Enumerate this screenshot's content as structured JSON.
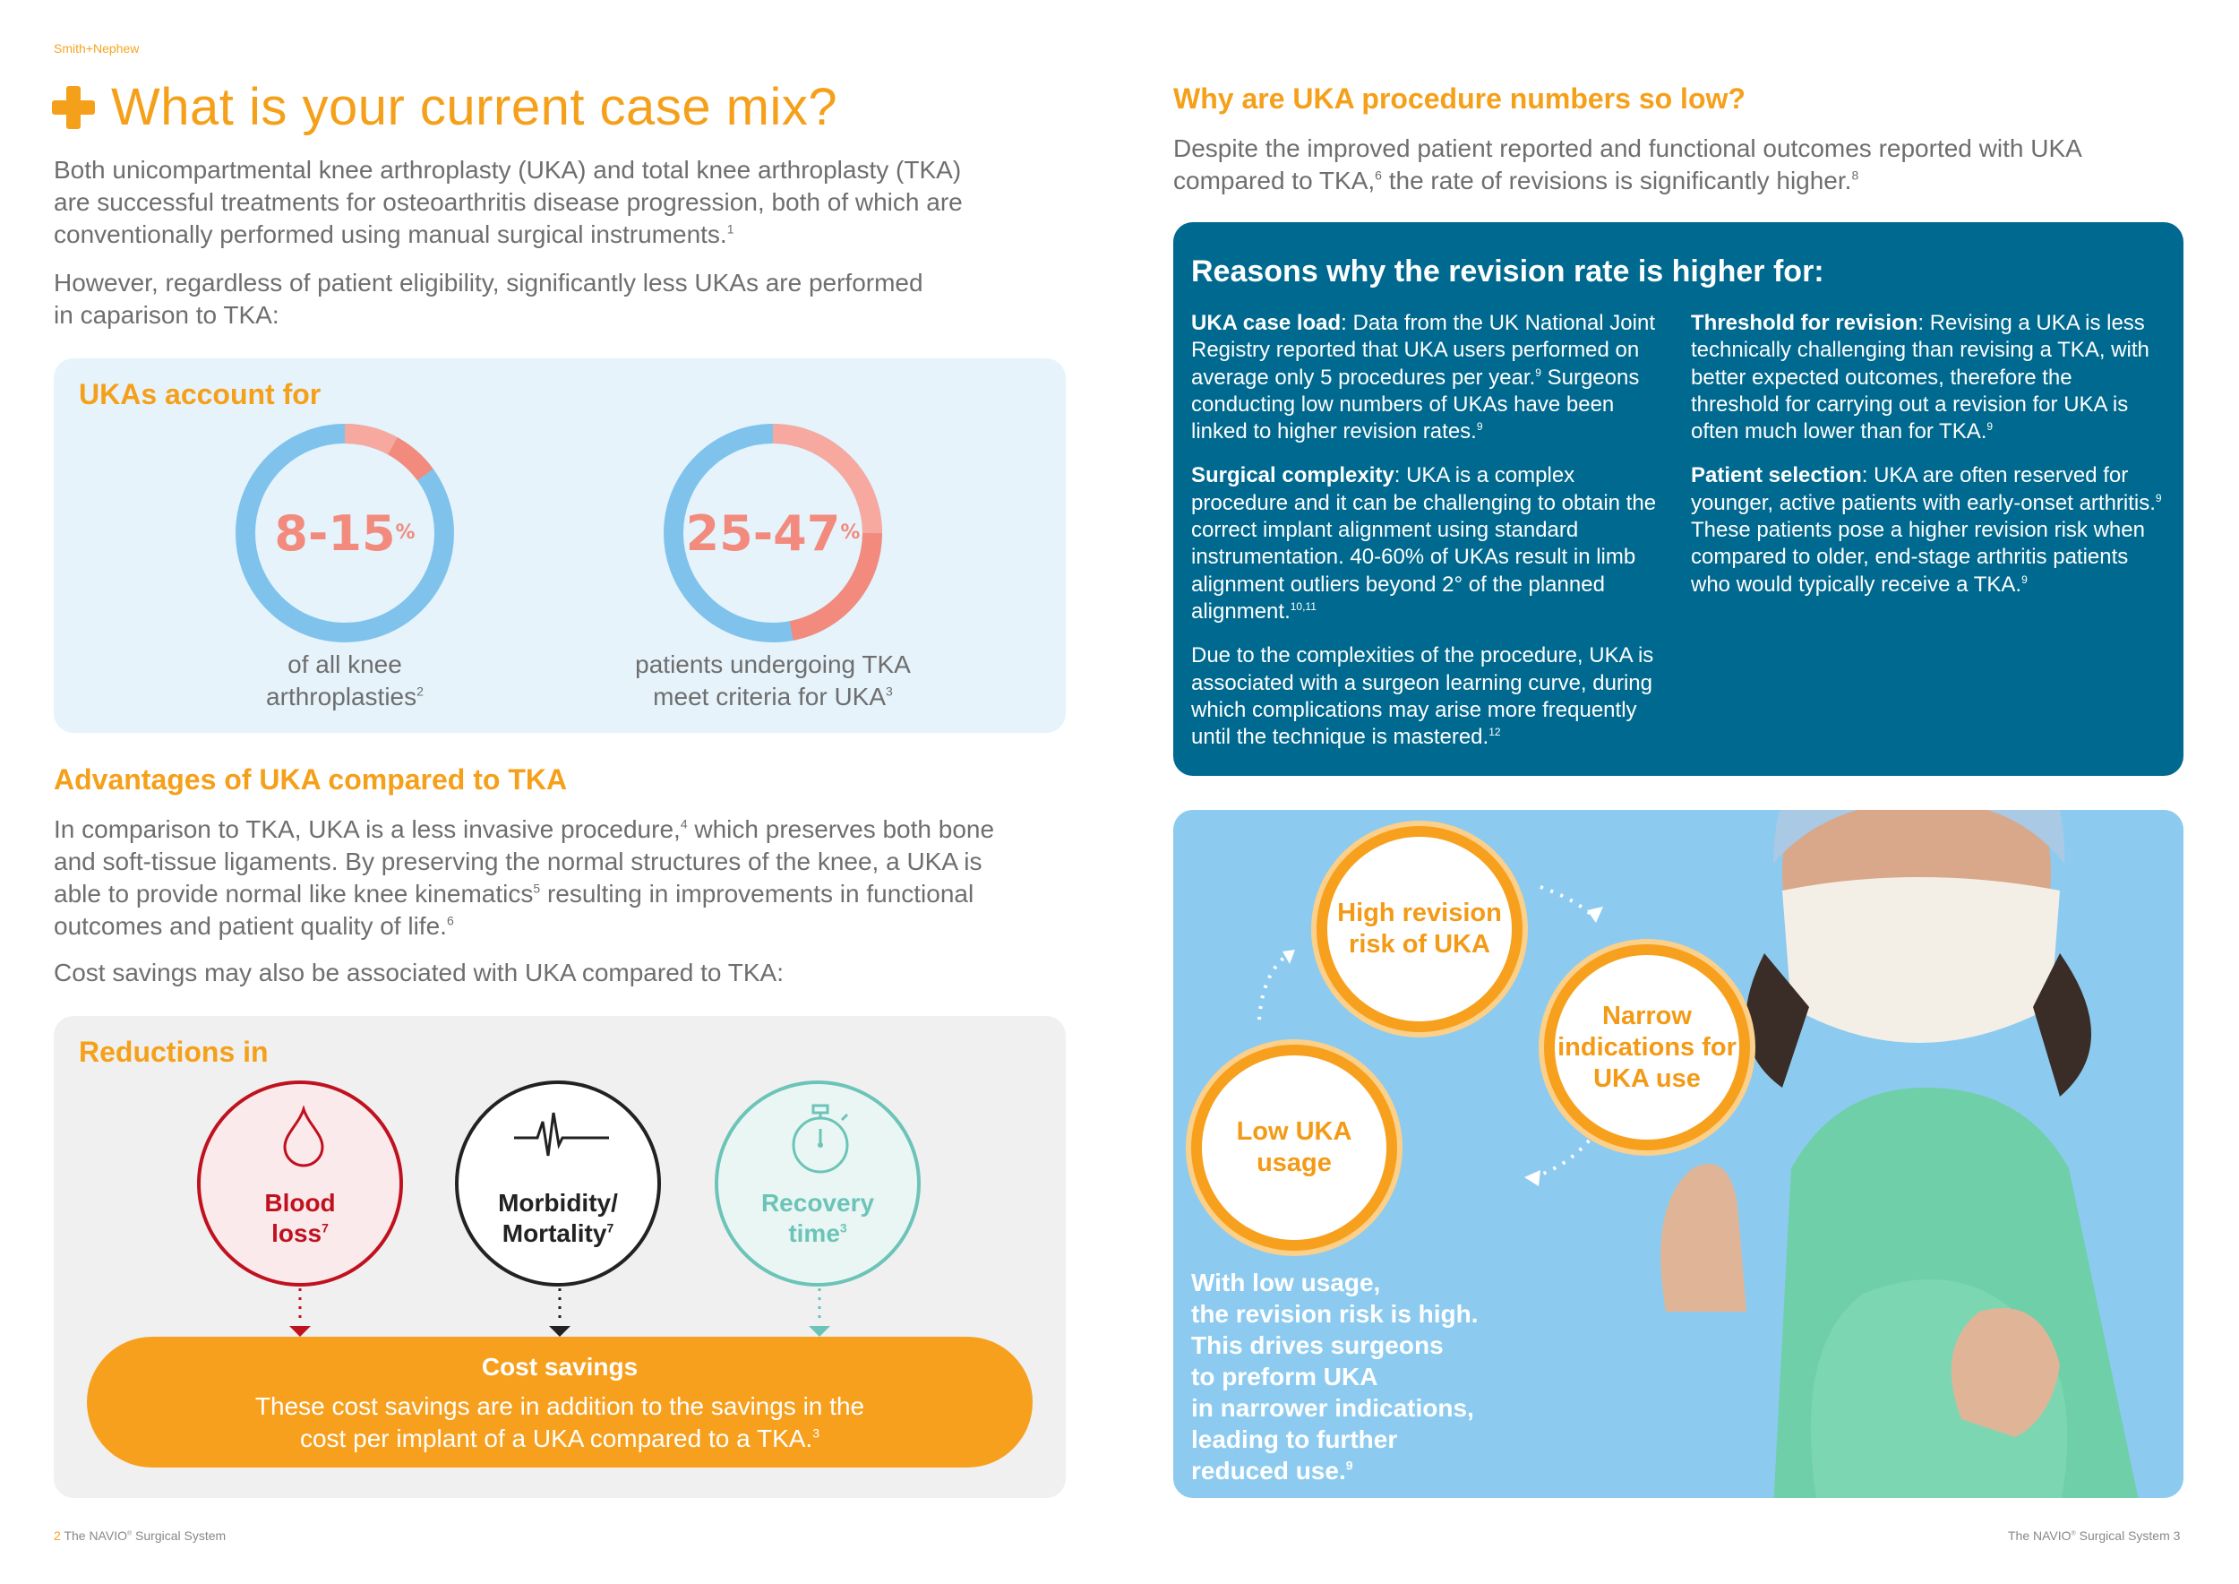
{
  "brand": "Smith+Nephew",
  "title": "What is your current case mix?",
  "intro": [
    "Both unicompartmental knee arthroplasty (UKA) and total knee arthroplasty (TKA)",
    "are successful treatments for osteoarthritis disease progression, both of which are",
    "conventionally performed using manual surgical instruments.",
    "However, regardless of patient eligibility, significantly less UKAs are performed",
    "in caparison to TKA:"
  ],
  "intro_ref": "1",
  "uka_panel": {
    "heading": "UKAs account for",
    "stat1": {
      "value": "8-15",
      "unit": "%",
      "caption1": "of all knee",
      "caption2": "arthroplasties",
      "ref": "2",
      "low_pct": 8,
      "high_pct": 15
    },
    "stat2": {
      "value": "25-47",
      "unit": "%",
      "caption1": "patients undergoing TKA",
      "caption2": "meet criteria for UKA",
      "ref": "3",
      "low_pct": 25,
      "high_pct": 47
    }
  },
  "advantages": {
    "heading": "Advantages of UKA compared to TKA",
    "lines": [
      "In comparison to TKA, UKA is a less invasive procedure,",
      " which preserves both bone",
      "and soft-tissue ligaments. By preserving the normal structures of the knee, a UKA is",
      "able to provide normal like knee kinematics",
      " resulting in improvements in functional",
      "outcomes and patient quality of life."
    ],
    "refs": [
      "4",
      "5",
      "6"
    ],
    "cost_line": "Cost savings may also be associated with UKA compared to TKA:"
  },
  "reductions": {
    "heading": "Reductions in",
    "items": [
      {
        "l1": "Blood",
        "l2": "loss",
        "ref": "7",
        "color": "#c0111f"
      },
      {
        "l1": "Morbidity/",
        "l2": "Mortality",
        "ref": "7",
        "color": "#222222"
      },
      {
        "l1": "Recovery",
        "l2": "time",
        "ref": "3",
        "color": "#6cc4b8"
      }
    ],
    "cost_title": "Cost savings",
    "cost_line1": "These cost savings are in addition to the savings in the",
    "cost_line2": "cost per implant of a UKA compared to a TKA.",
    "cost_ref": "3"
  },
  "footer_left": {
    "num": "2",
    "text": "The NAVIO",
    "reg": "®",
    "text2": " Surgical System"
  },
  "footer_right": {
    "text": "The NAVIO",
    "reg": "®",
    "text2": " Surgical System 3"
  },
  "why": {
    "heading": "Why are UKA procedure numbers so low?",
    "line1": "Despite the improved patient reported and functional outcomes reported with UKA",
    "line2a": "compared to TKA,",
    "ref_a": "6",
    "line2b": " the rate of revisions is significantly higher.",
    "ref_b": "8"
  },
  "reasons": {
    "title": "Reasons why the revision rate is higher for:",
    "case_load_b": "UKA case load",
    "case_load": ": Data from the UK National Joint Registry reported that UKA users performed on average only 5 procedures per year.",
    "case_load_ref": "9",
    "case_load2": " Surgeons conducting low numbers of UKAs have been linked to higher revision rates.",
    "case_load2_ref": "9",
    "complexity_b": "Surgical complexity",
    "complexity": ": UKA is a complex procedure and it can be challenging to obtain the correct implant alignment using standard instrumentation. 40-60% of UKAs result in limb alignment outliers beyond 2° of the planned alignment.",
    "complexity_ref": "10,11",
    "curve": "Due to the complexities of the procedure, UKA is associated with a surgeon learning curve, during which complications may arise more frequently until the technique is mastered.",
    "curve_ref": "12",
    "threshold_b": "Threshold for revision",
    "threshold": ": Revising a UKA is less technically challenging than revising a TKA, with better expected outcomes, therefore the threshold for carrying out a revision for UKA is often much lower than for TKA.",
    "threshold_ref": "9",
    "selection_b": "Patient selection",
    "selection": ": UKA are often reserved for younger, active patients with early-onset arthritis.",
    "selection_ref": "9",
    "selection2": " These patients pose a higher revision risk when compared to older, end-stage arthritis patients who would typically receive a TKA.",
    "selection2_ref": "9"
  },
  "cycle": {
    "c1": "High revision risk of UKA",
    "c2": "Narrow indications for UKA use",
    "c3": "Low UKA usage",
    "text_lines": [
      "With low usage,",
      "the revision risk is high.",
      "This drives surgeons",
      "to preform UKA",
      "in narrower indications,",
      "leading to further",
      "reduced use."
    ],
    "text_ref": "9"
  }
}
